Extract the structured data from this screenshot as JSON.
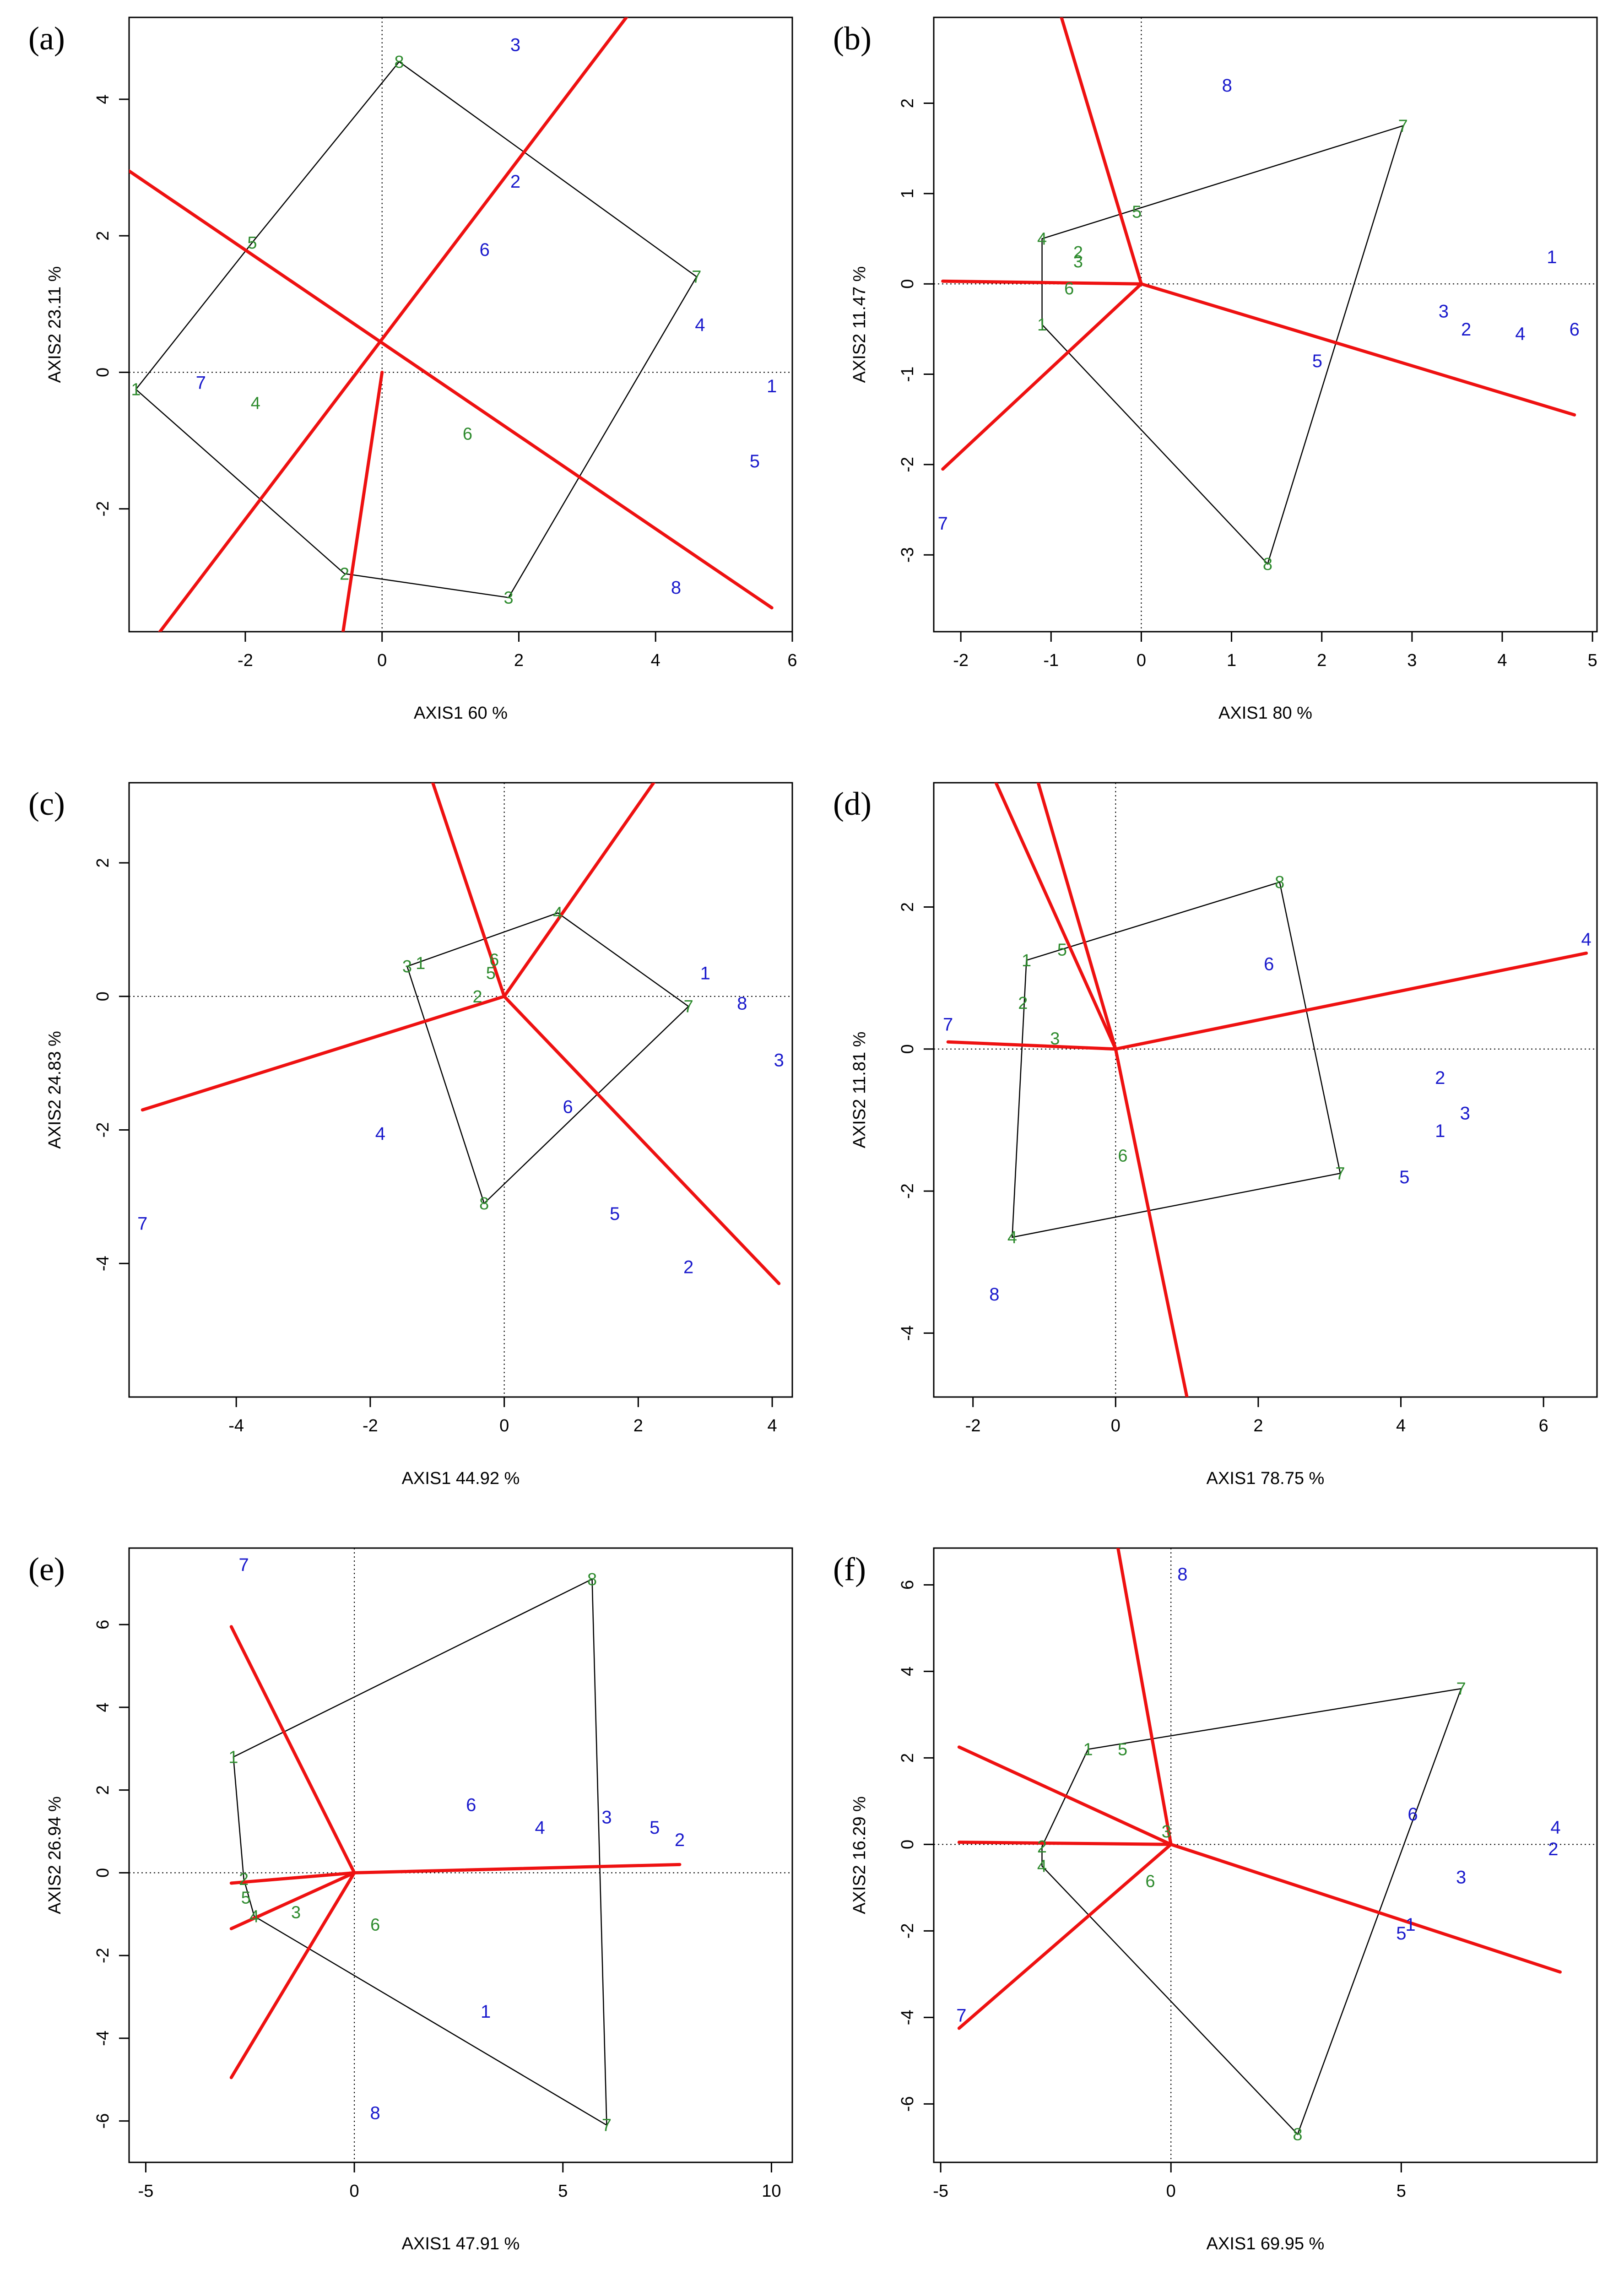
{
  "figure": {
    "colors": {
      "genotype": "#1a1acc",
      "environment": "#2e8b2e",
      "vector": "#ee1111",
      "hull": "#000000",
      "axis": "#000000"
    }
  },
  "chart_data": [
    {
      "panel_label": "(a)",
      "type": "scatter",
      "xlabel": "AXIS1 60 %",
      "ylabel": "AXIS2 23.11 %",
      "xlim": [
        -3.7,
        6.0
      ],
      "ylim": [
        -3.8,
        5.2
      ],
      "xticks": [
        -2,
        0,
        2,
        4,
        6
      ],
      "yticks": [
        -2,
        0,
        2,
        4
      ],
      "genotypes": [
        {
          "label": "1",
          "x": 5.7,
          "y": -0.2
        },
        {
          "label": "2",
          "x": 1.95,
          "y": 2.8
        },
        {
          "label": "3",
          "x": 1.95,
          "y": 4.8
        },
        {
          "label": "4",
          "x": 4.65,
          "y": 0.7
        },
        {
          "label": "5",
          "x": 5.45,
          "y": -1.3
        },
        {
          "label": "6",
          "x": 1.5,
          "y": 1.8
        },
        {
          "label": "7",
          "x": -2.65,
          "y": -0.15
        },
        {
          "label": "8",
          "x": 4.3,
          "y": -3.15
        }
      ],
      "environments": [
        {
          "label": "1",
          "x": -3.6,
          "y": -0.25
        },
        {
          "label": "2",
          "x": -0.55,
          "y": -2.95
        },
        {
          "label": "3",
          "x": 1.85,
          "y": -3.3
        },
        {
          "label": "4",
          "x": -1.85,
          "y": -0.45
        },
        {
          "label": "5",
          "x": -1.9,
          "y": 1.9
        },
        {
          "label": "6",
          "x": 1.25,
          "y": -0.9
        },
        {
          "label": "7",
          "x": 4.6,
          "y": 1.4
        },
        {
          "label": "8",
          "x": 0.25,
          "y": 4.55
        }
      ],
      "hull": [
        "8",
        "7",
        "3",
        "2",
        "1",
        "5"
      ],
      "vector_segments": [
        {
          "from": [
            -3.7,
            2.95
          ],
          "to": [
            5.7,
            -3.45
          ]
        },
        {
          "from": [
            -3.4,
            -4.0
          ],
          "to": [
            3.8,
            5.5
          ]
        },
        {
          "from": [
            0.0,
            0.0
          ],
          "to": [
            -0.6,
            -4.0
          ]
        }
      ]
    },
    {
      "panel_label": "(b)",
      "type": "scatter",
      "xlabel": "AXIS1 80 %",
      "ylabel": "AXIS2 11.47 %",
      "xlim": [
        -2.3,
        5.05
      ],
      "ylim": [
        -3.85,
        2.95
      ],
      "xticks": [
        -2,
        -1,
        0,
        1,
        2,
        3,
        4,
        5
      ],
      "yticks": [
        -3,
        -2,
        -1,
        0,
        1,
        2
      ],
      "genotypes": [
        {
          "label": "1",
          "x": 4.55,
          "y": 0.3
        },
        {
          "label": "2",
          "x": 3.6,
          "y": -0.5
        },
        {
          "label": "3",
          "x": 3.35,
          "y": -0.3
        },
        {
          "label": "4",
          "x": 4.2,
          "y": -0.55
        },
        {
          "label": "5",
          "x": 1.95,
          "y": -0.85
        },
        {
          "label": "6",
          "x": 4.8,
          "y": -0.5
        },
        {
          "label": "7",
          "x": -2.2,
          "y": -2.65
        },
        {
          "label": "8",
          "x": 0.95,
          "y": 2.2
        }
      ],
      "environments": [
        {
          "label": "1",
          "x": -1.1,
          "y": -0.45
        },
        {
          "label": "2",
          "x": -0.7,
          "y": 0.35
        },
        {
          "label": "3",
          "x": -0.7,
          "y": 0.25
        },
        {
          "label": "4",
          "x": -1.1,
          "y": 0.5
        },
        {
          "label": "5",
          "x": -0.05,
          "y": 0.8
        },
        {
          "label": "6",
          "x": -0.8,
          "y": -0.05
        },
        {
          "label": "7",
          "x": 2.9,
          "y": 1.75
        },
        {
          "label": "8",
          "x": 1.4,
          "y": -3.1
        }
      ],
      "hull": [
        "7",
        "8",
        "1",
        "4"
      ],
      "vector_segments": [
        {
          "from": [
            0.0,
            0.0
          ],
          "to": [
            -2.2,
            0.03
          ]
        },
        {
          "from": [
            0.0,
            0.0
          ],
          "to": [
            -0.9,
            3.0
          ]
        },
        {
          "from": [
            0.0,
            0.0
          ],
          "to": [
            -2.2,
            -2.05
          ]
        },
        {
          "from": [
            0.0,
            0.0
          ],
          "to": [
            4.8,
            -1.45
          ]
        }
      ]
    },
    {
      "panel_label": "(c)",
      "type": "scatter",
      "xlabel": "AXIS1 44.92 %",
      "ylabel": "AXIS2 24.83 %",
      "xlim": [
        -5.6,
        4.3
      ],
      "ylim": [
        -6.0,
        3.2
      ],
      "xticks": [
        -4,
        -2,
        0,
        2,
        4
      ],
      "yticks": [
        -4,
        -2,
        0,
        2
      ],
      "genotypes": [
        {
          "label": "1",
          "x": 3.0,
          "y": 0.35
        },
        {
          "label": "2",
          "x": 2.75,
          "y": -4.05
        },
        {
          "label": "3",
          "x": 4.1,
          "y": -0.95
        },
        {
          "label": "4",
          "x": -1.85,
          "y": -2.05
        },
        {
          "label": "5",
          "x": 1.65,
          "y": -3.25
        },
        {
          "label": "6",
          "x": 0.95,
          "y": -1.65
        },
        {
          "label": "7",
          "x": -5.4,
          "y": -3.4
        },
        {
          "label": "8",
          "x": 3.55,
          "y": -0.1
        }
      ],
      "environments": [
        {
          "label": "1",
          "x": -1.25,
          "y": 0.5
        },
        {
          "label": "2",
          "x": -0.4,
          "y": 0.0
        },
        {
          "label": "3",
          "x": -1.45,
          "y": 0.45
        },
        {
          "label": "4",
          "x": 0.8,
          "y": 1.25
        },
        {
          "label": "5",
          "x": -0.2,
          "y": 0.35
        },
        {
          "label": "6",
          "x": -0.15,
          "y": 0.55
        },
        {
          "label": "7",
          "x": 2.75,
          "y": -0.15
        },
        {
          "label": "8",
          "x": -0.3,
          "y": -3.1
        }
      ],
      "hull": [
        "4",
        "7",
        "8",
        "3"
      ],
      "vector_segments": [
        {
          "from": [
            0.0,
            0.0
          ],
          "to": [
            -5.4,
            -1.7
          ]
        },
        {
          "from": [
            0.0,
            0.0
          ],
          "to": [
            -1.1,
            3.3
          ]
        },
        {
          "from": [
            0.0,
            0.0
          ],
          "to": [
            2.3,
            3.3
          ]
        },
        {
          "from": [
            0.0,
            0.0
          ],
          "to": [
            4.1,
            -4.3
          ]
        }
      ]
    },
    {
      "panel_label": "(d)",
      "type": "scatter",
      "xlabel": "AXIS1 78.75 %",
      "ylabel": "AXIS2 11.81 %",
      "xlim": [
        -2.55,
        6.75
      ],
      "ylim": [
        -4.9,
        3.75
      ],
      "xticks": [
        -2,
        0,
        2,
        4,
        6
      ],
      "yticks": [
        -4,
        -2,
        0,
        2
      ],
      "genotypes": [
        {
          "label": "1",
          "x": 4.55,
          "y": -1.15
        },
        {
          "label": "2",
          "x": 4.55,
          "y": -0.4
        },
        {
          "label": "3",
          "x": 4.9,
          "y": -0.9
        },
        {
          "label": "4",
          "x": 6.6,
          "y": 1.55
        },
        {
          "label": "5",
          "x": 4.05,
          "y": -1.8
        },
        {
          "label": "6",
          "x": 2.15,
          "y": 1.2
        },
        {
          "label": "7",
          "x": -2.35,
          "y": 0.35
        },
        {
          "label": "8",
          "x": -1.7,
          "y": -3.45
        }
      ],
      "environments": [
        {
          "label": "1",
          "x": -1.25,
          "y": 1.25
        },
        {
          "label": "2",
          "x": -1.3,
          "y": 0.65
        },
        {
          "label": "3",
          "x": -0.85,
          "y": 0.15
        },
        {
          "label": "4",
          "x": -1.45,
          "y": -2.65
        },
        {
          "label": "5",
          "x": -0.75,
          "y": 1.4
        },
        {
          "label": "6",
          "x": 0.1,
          "y": -1.5
        },
        {
          "label": "7",
          "x": 3.15,
          "y": -1.75
        },
        {
          "label": "8",
          "x": 2.3,
          "y": 2.35
        }
      ],
      "hull": [
        "8",
        "7",
        "4",
        "1"
      ],
      "vector_segments": [
        {
          "from": [
            0.0,
            0.0
          ],
          "to": [
            -2.35,
            0.1
          ]
        },
        {
          "from": [
            0.0,
            0.0
          ],
          "to": [
            -1.7,
            3.8
          ]
        },
        {
          "from": [
            0.0,
            0.0
          ],
          "to": [
            -1.1,
            3.8
          ]
        },
        {
          "from": [
            0.0,
            0.0
          ],
          "to": [
            6.6,
            1.35
          ]
        },
        {
          "from": [
            0.0,
            0.0
          ],
          "to": [
            1.0,
            -4.9
          ]
        }
      ]
    },
    {
      "panel_label": "(e)",
      "type": "scatter",
      "xlabel": "AXIS1 47.91 %",
      "ylabel": "AXIS2 26.94 %",
      "xlim": [
        -5.4,
        10.5
      ],
      "ylim": [
        -7.0,
        7.85
      ],
      "xticks": [
        -5,
        0,
        5,
        10
      ],
      "yticks": [
        -6,
        -4,
        -2,
        0,
        2,
        4,
        6
      ],
      "genotypes": [
        {
          "label": "1",
          "x": 3.15,
          "y": -3.35
        },
        {
          "label": "2",
          "x": 7.8,
          "y": 0.8
        },
        {
          "label": "3",
          "x": 6.05,
          "y": 1.35
        },
        {
          "label": "4",
          "x": 4.45,
          "y": 1.1
        },
        {
          "label": "5",
          "x": 7.2,
          "y": 1.1
        },
        {
          "label": "6",
          "x": 2.8,
          "y": 1.65
        },
        {
          "label": "7",
          "x": -2.65,
          "y": 7.45
        },
        {
          "label": "8",
          "x": 0.5,
          "y": -5.8
        }
      ],
      "environments": [
        {
          "label": "1",
          "x": -2.9,
          "y": 2.8
        },
        {
          "label": "2",
          "x": -2.65,
          "y": -0.15
        },
        {
          "label": "3",
          "x": -1.4,
          "y": -0.95
        },
        {
          "label": "4",
          "x": -2.4,
          "y": -1.05
        },
        {
          "label": "5",
          "x": -2.6,
          "y": -0.6
        },
        {
          "label": "6",
          "x": 0.5,
          "y": -1.25
        },
        {
          "label": "7",
          "x": 6.05,
          "y": -6.1
        },
        {
          "label": "8",
          "x": 5.7,
          "y": 7.1
        }
      ],
      "hull": [
        "8",
        "7",
        "4",
        "2",
        "1"
      ],
      "vector_segments": [
        {
          "from": [
            0.0,
            0.0
          ],
          "to": [
            -2.95,
            -0.25
          ]
        },
        {
          "from": [
            0.0,
            0.0
          ],
          "to": [
            -2.95,
            5.95
          ]
        },
        {
          "from": [
            0.0,
            0.0
          ],
          "to": [
            -2.95,
            -1.35
          ]
        },
        {
          "from": [
            0.0,
            0.0
          ],
          "to": [
            -2.95,
            -4.95
          ]
        },
        {
          "from": [
            0.0,
            0.0
          ],
          "to": [
            7.8,
            0.2
          ]
        }
      ]
    },
    {
      "panel_label": "(f)",
      "type": "scatter",
      "xlabel": "AXIS1 69.95 %",
      "ylabel": "AXIS2 16.29 %",
      "xlim": [
        -5.15,
        9.25
      ],
      "ylim": [
        -7.35,
        6.85
      ],
      "xticks": [
        -5,
        0,
        5
      ],
      "yticks": [
        -6,
        -4,
        -2,
        0,
        2,
        4,
        6
      ],
      "genotypes": [
        {
          "label": "1",
          "x": 5.2,
          "y": -1.85
        },
        {
          "label": "2",
          "x": 8.3,
          "y": -0.1
        },
        {
          "label": "3",
          "x": 6.3,
          "y": -0.75
        },
        {
          "label": "4",
          "x": 8.35,
          "y": 0.4
        },
        {
          "label": "5",
          "x": 5.0,
          "y": -2.05
        },
        {
          "label": "6",
          "x": 5.25,
          "y": 0.7
        },
        {
          "label": "7",
          "x": -4.55,
          "y": -3.95
        },
        {
          "label": "8",
          "x": 0.25,
          "y": 6.25
        }
      ],
      "environments": [
        {
          "label": "1",
          "x": -1.8,
          "y": 2.2
        },
        {
          "label": "2",
          "x": -2.8,
          "y": -0.05
        },
        {
          "label": "3",
          "x": -0.1,
          "y": 0.3
        },
        {
          "label": "4",
          "x": -2.8,
          "y": -0.5
        },
        {
          "label": "5",
          "x": -1.05,
          "y": 2.2
        },
        {
          "label": "6",
          "x": -0.45,
          "y": -0.85
        },
        {
          "label": "7",
          "x": 6.3,
          "y": 3.6
        },
        {
          "label": "8",
          "x": 2.75,
          "y": -6.7
        }
      ],
      "hull": [
        "7",
        "8",
        "4",
        "2",
        "1"
      ],
      "vector_segments": [
        {
          "from": [
            0.0,
            0.0
          ],
          "to": [
            -4.6,
            0.05
          ]
        },
        {
          "from": [
            0.0,
            0.0
          ],
          "to": [
            -4.6,
            2.25
          ]
        },
        {
          "from": [
            0.0,
            0.0
          ],
          "to": [
            -4.6,
            -4.25
          ]
        },
        {
          "from": [
            0.0,
            0.0
          ],
          "to": [
            -1.15,
            6.85
          ]
        },
        {
          "from": [
            0.0,
            0.0
          ],
          "to": [
            8.45,
            -2.95
          ]
        }
      ]
    }
  ]
}
